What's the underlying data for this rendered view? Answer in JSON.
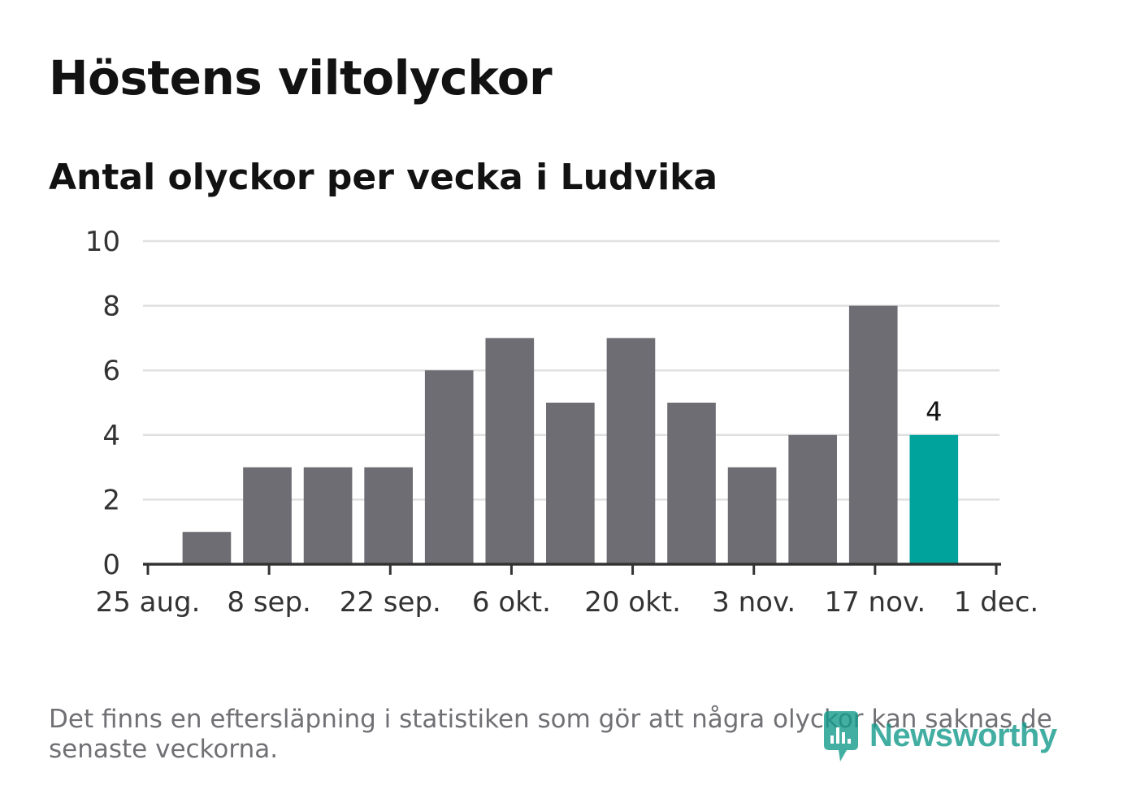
{
  "title": "Höstens viltolyckor",
  "subtitle": "Antal olyckor per vecka i Ludvika",
  "footnote": "Det finns en eftersläpning i statistiken som gör att några olyckor kan saknas de senaste veckorna.",
  "brand": {
    "name": "Newsworthy",
    "icon": "newsworthy-logo-icon"
  },
  "colors": {
    "bar": "#6e6d73",
    "highlight": "#00a39b",
    "grid": "#e0e0e0",
    "axis": "#333333"
  },
  "chart_data": {
    "type": "bar",
    "title": "Höstens viltolyckor",
    "subtitle": "Antal olyckor per vecka i Ludvika",
    "xlabel": "",
    "ylabel": "",
    "ylim": [
      0,
      10
    ],
    "yticks": [
      "0",
      "2",
      "4",
      "6",
      "8",
      "10"
    ],
    "xlim_days": [
      0,
      98
    ],
    "xticks": [
      {
        "label": "25 aug.",
        "day": 0
      },
      {
        "label": "8 sep.",
        "day": 14
      },
      {
        "label": "22 sep.",
        "day": 28
      },
      {
        "label": "6 okt.",
        "day": 42
      },
      {
        "label": "20 okt.",
        "day": 56
      },
      {
        "label": "3 nov.",
        "day": 70
      },
      {
        "label": "17 nov.",
        "day": 84
      },
      {
        "label": "1 dec.",
        "day": 98
      }
    ],
    "bar_width_days": 5.6,
    "bars": [
      {
        "week_start_day": 4,
        "value": 1
      },
      {
        "week_start_day": 11,
        "value": 3
      },
      {
        "week_start_day": 18,
        "value": 3
      },
      {
        "week_start_day": 25,
        "value": 3
      },
      {
        "week_start_day": 32,
        "value": 6
      },
      {
        "week_start_day": 39,
        "value": 7
      },
      {
        "week_start_day": 46,
        "value": 5
      },
      {
        "week_start_day": 53,
        "value": 7
      },
      {
        "week_start_day": 60,
        "value": 5
      },
      {
        "week_start_day": 67,
        "value": 3
      },
      {
        "week_start_day": 74,
        "value": 4
      },
      {
        "week_start_day": 81,
        "value": 8
      },
      {
        "week_start_day": 88,
        "value": 4,
        "highlight": true
      }
    ],
    "data_labels": [
      {
        "bar_index": 12,
        "text": "4"
      }
    ]
  }
}
